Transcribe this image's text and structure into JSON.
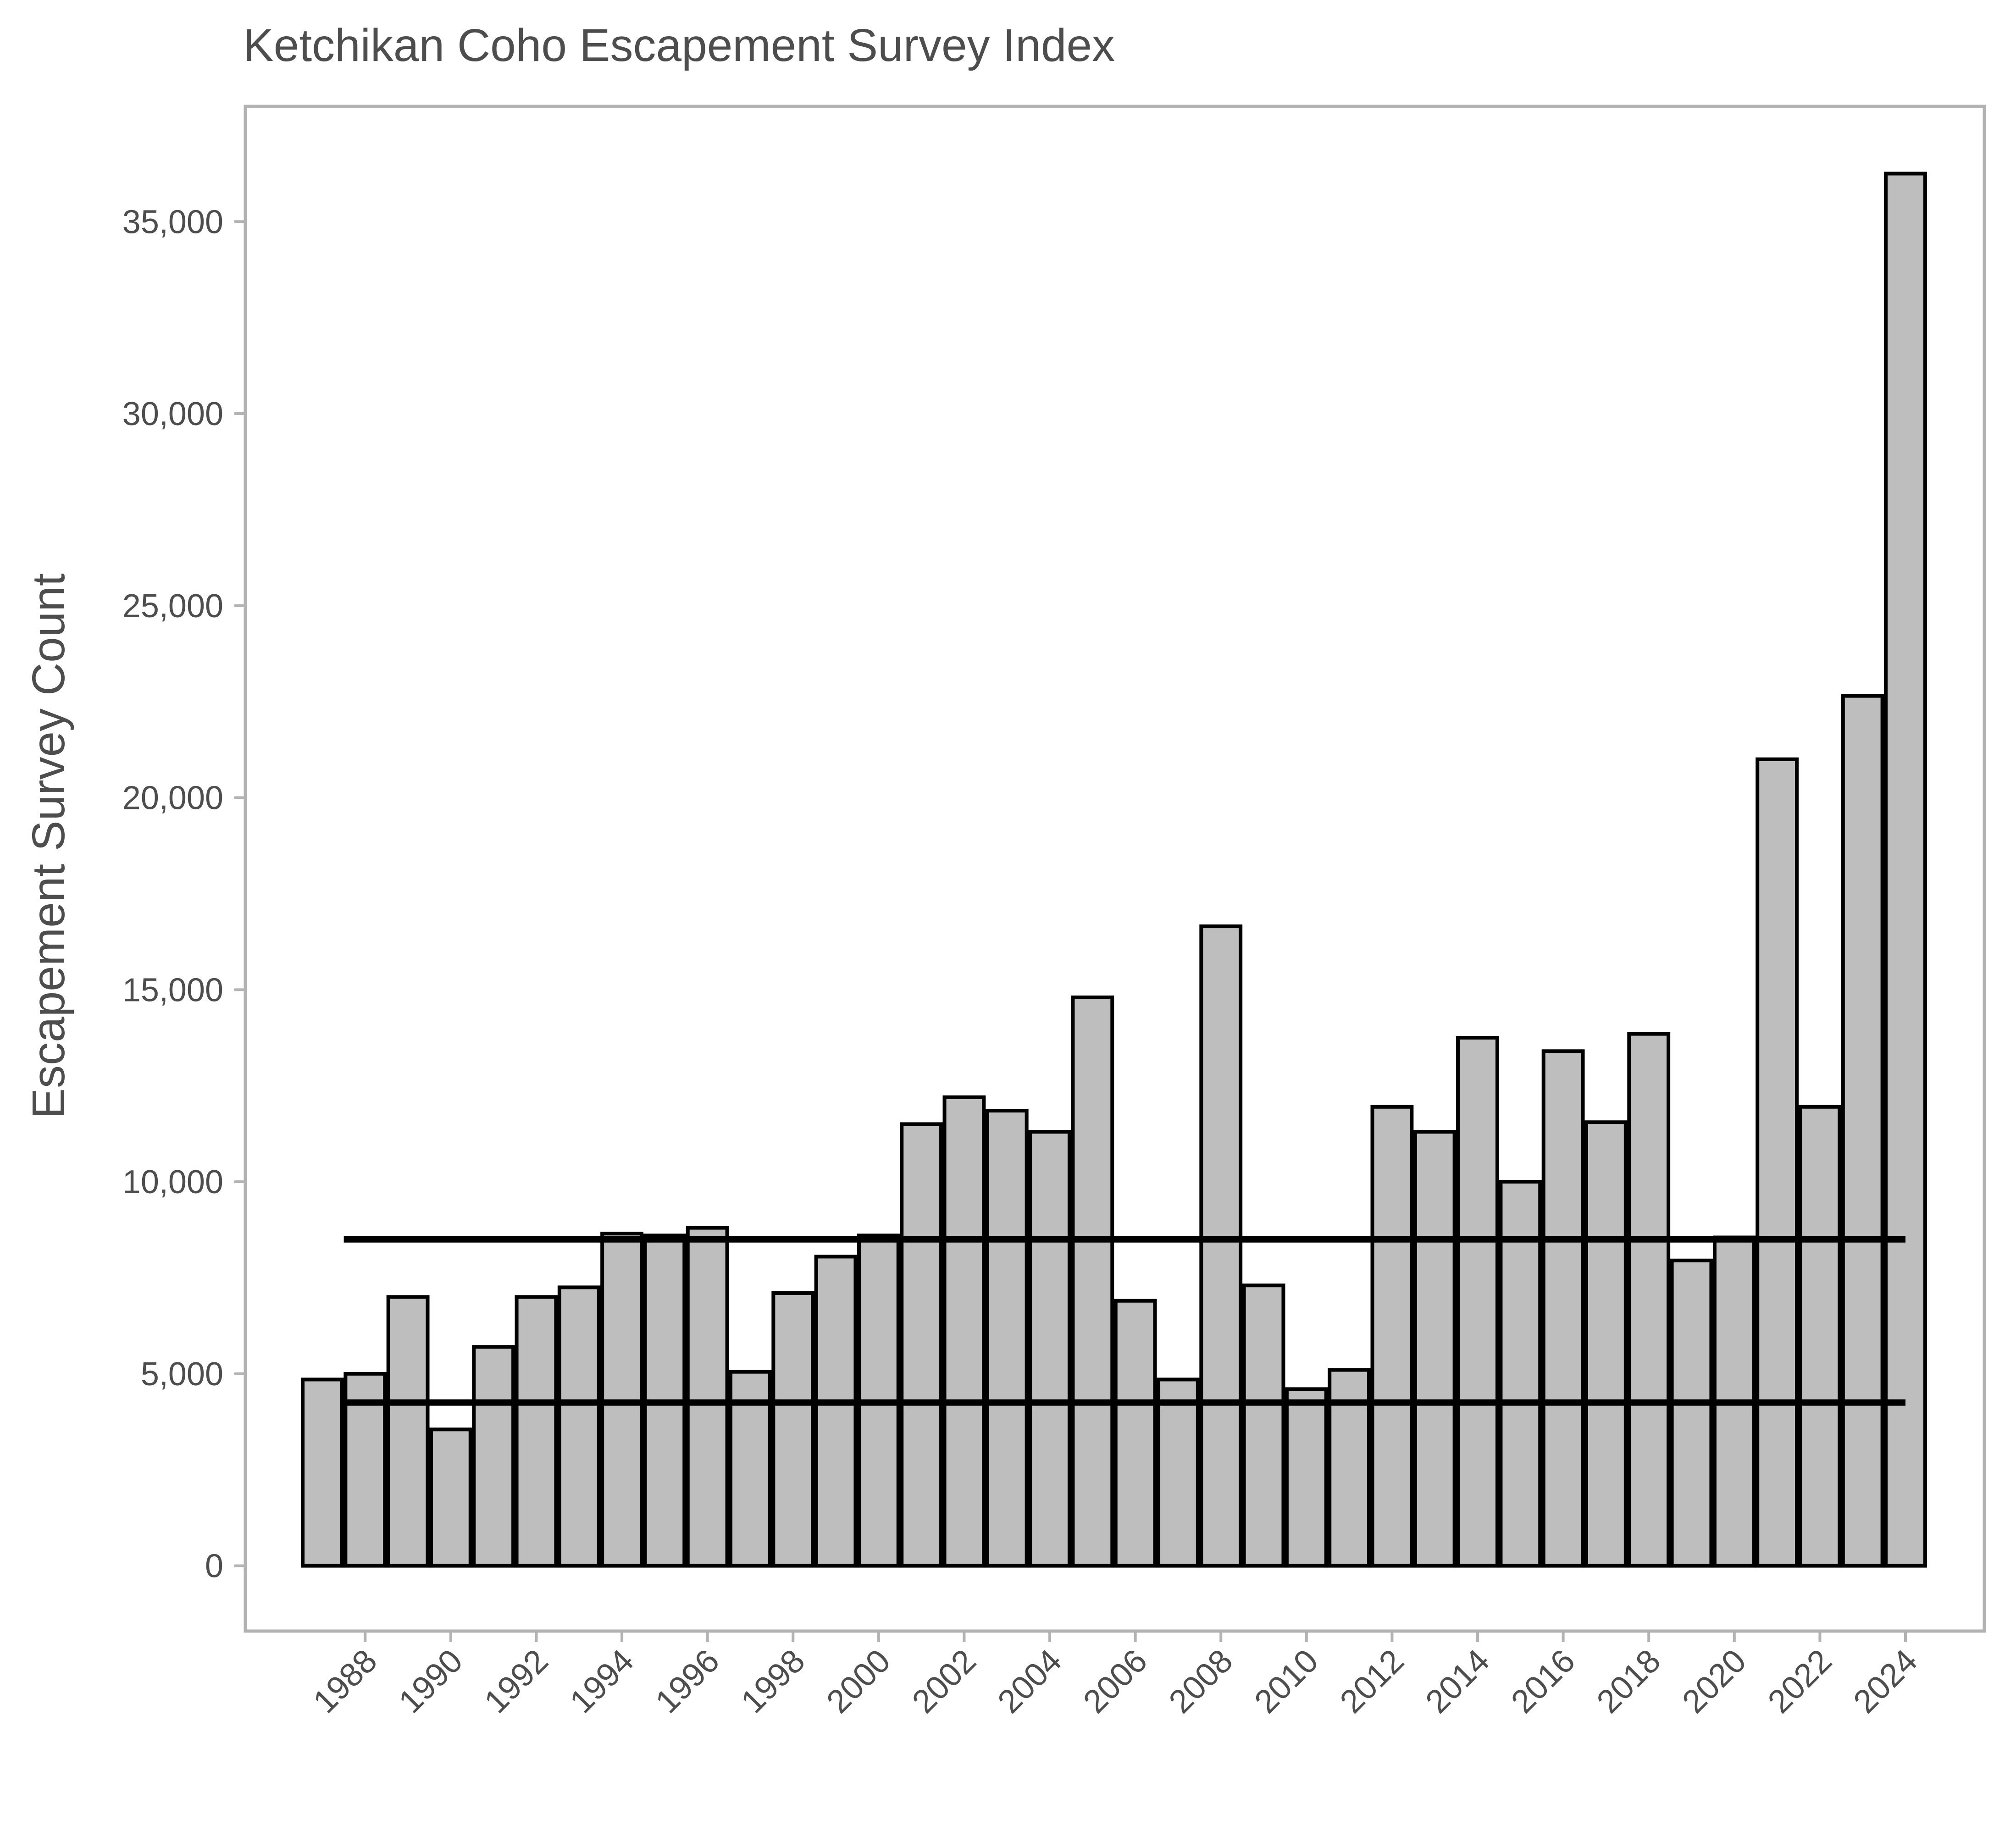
{
  "chart_data": {
    "type": "bar",
    "title": "Ketchikan Coho Escapement Survey Index",
    "xlabel": "",
    "ylabel": "Escapement Survey Count",
    "categories": [
      1987,
      1988,
      1989,
      1990,
      1991,
      1992,
      1993,
      1994,
      1995,
      1996,
      1997,
      1998,
      1999,
      2000,
      2001,
      2002,
      2003,
      2004,
      2005,
      2006,
      2007,
      2008,
      2009,
      2010,
      2011,
      2012,
      2013,
      2014,
      2015,
      2016,
      2017,
      2018,
      2019,
      2020,
      2021,
      2022,
      2023,
      2024
    ],
    "values": [
      4850,
      5000,
      7000,
      3550,
      5700,
      7000,
      7250,
      8650,
      8600,
      8800,
      5050,
      7100,
      8050,
      8600,
      11500,
      12200,
      11850,
      11300,
      14800,
      6900,
      4850,
      16650,
      7300,
      4600,
      5100,
      11950,
      11300,
      13750,
      10000,
      13400,
      11550,
      13850,
      7950,
      8550,
      21000,
      11950,
      22650,
      36250
    ],
    "x_tick_labels": [
      "1988",
      "1990",
      "1992",
      "1994",
      "1996",
      "1998",
      "2000",
      "2002",
      "2004",
      "2006",
      "2008",
      "2010",
      "2012",
      "2014",
      "2016",
      "2018",
      "2020",
      "2022",
      "2024"
    ],
    "y_tick_values": [
      0,
      5000,
      10000,
      15000,
      20000,
      25000,
      30000,
      35000
    ],
    "y_tick_labels": [
      "0",
      "5,000",
      "10,000",
      "15,000",
      "20,000",
      "25,000",
      "30,000",
      "35,000"
    ],
    "ylim": [
      -1700,
      38000
    ],
    "reference_lines": [
      {
        "value": 8500,
        "from": 1987.5,
        "to": 2024
      },
      {
        "value": 4250,
        "from": 1987.5,
        "to": 2024
      }
    ],
    "grid": false,
    "legend": "none",
    "colors": {
      "bar_fill": "#bebebe",
      "bar_stroke": "#000000",
      "reference_line": "#000000",
      "panel_border": "#b3b3b3",
      "text": "#4d4d4d"
    }
  }
}
